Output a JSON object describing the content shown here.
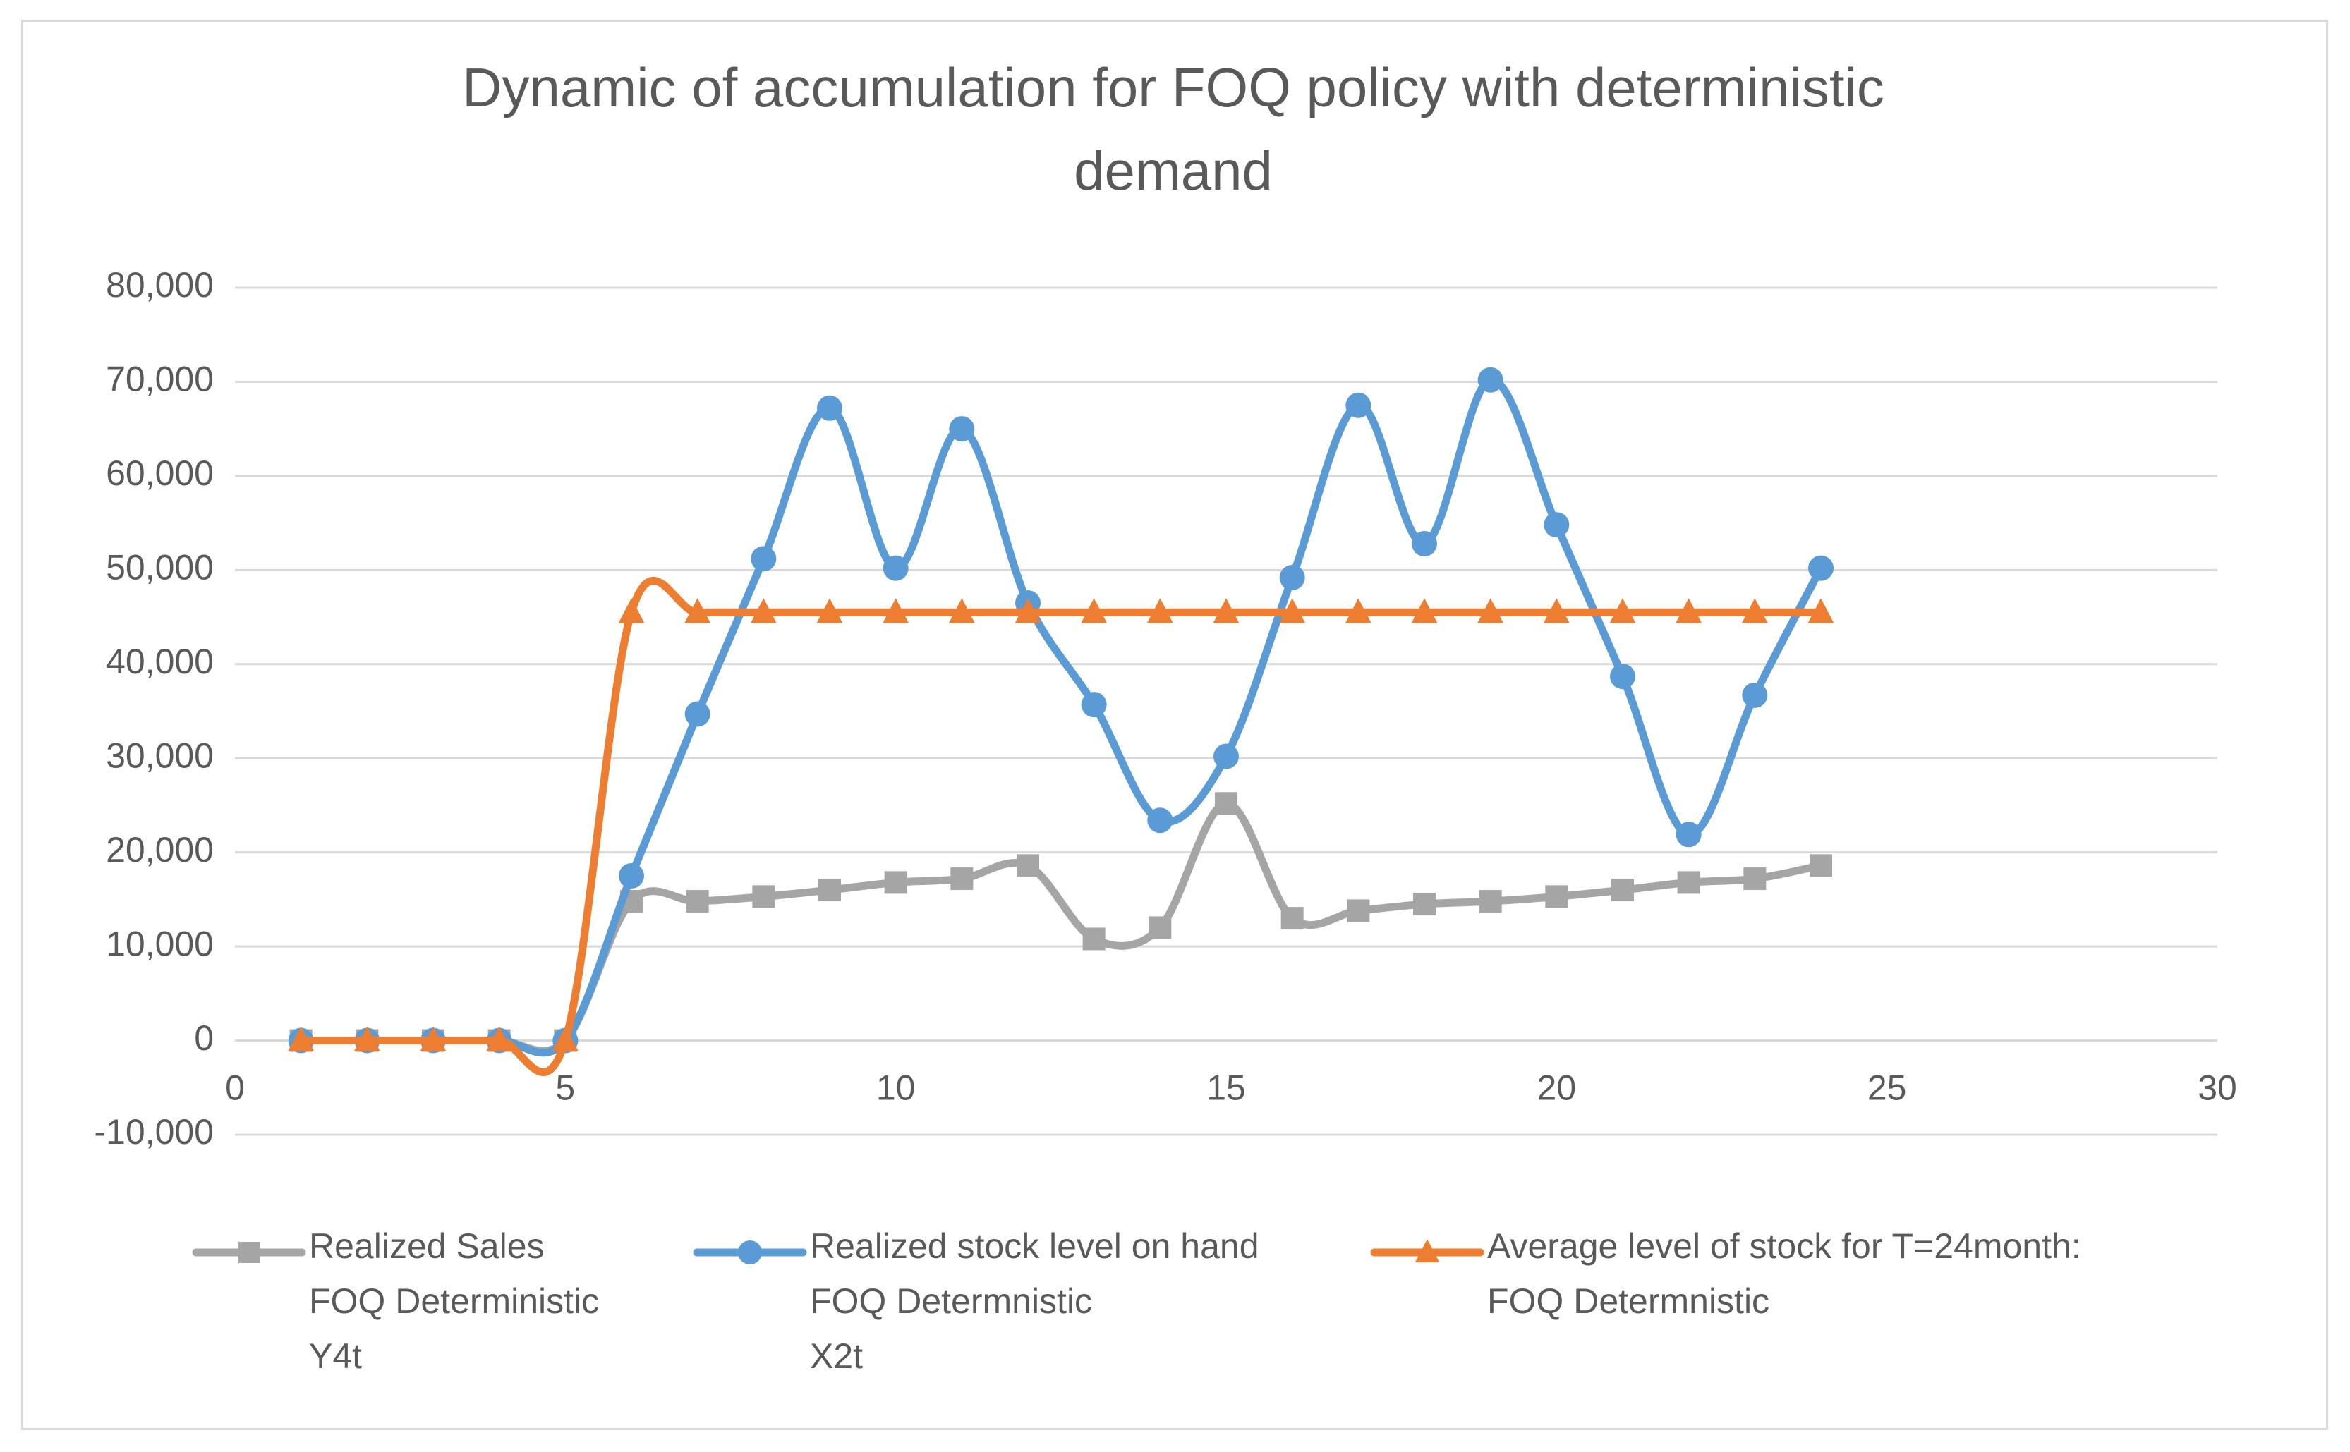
{
  "chart_data": {
    "type": "line",
    "title_lines": [
      "Dynamic of accumulation for FOQ policy with deterministic",
      "demand"
    ],
    "xlabel": "",
    "ylabel": "",
    "xlim": [
      0,
      30
    ],
    "ylim": [
      -10000,
      80000
    ],
    "x_ticks": [
      "0",
      "5",
      "10",
      "15",
      "20",
      "25",
      "30"
    ],
    "y_ticks": [
      "80,000",
      "70,000",
      "60,000",
      "50,000",
      "40,000",
      "30,000",
      "20,000",
      "10,000",
      "0",
      "-10,000"
    ],
    "grid": true,
    "legend_position": "bottom",
    "colors": {
      "sales": "#a5a5a5",
      "stock": "#5b9bd5",
      "average": "#ed7d31",
      "grid": "#d9d9d9",
      "text": "#595959"
    },
    "series": [
      {
        "name": "Realized Sales FOQ Deterministic Y4t",
        "legend_lines": [
          "Realized Sales",
          "FOQ Deterministic",
          "Y4t"
        ],
        "marker": "square",
        "color": "#a5a5a5",
        "x": [
          1,
          2,
          3,
          4,
          5,
          6,
          7,
          8,
          9,
          10,
          11,
          12,
          13,
          14,
          15,
          16,
          17,
          18,
          19,
          20,
          21,
          22,
          23,
          24
        ],
        "values": [
          0,
          0,
          0,
          0,
          0,
          14800,
          14800,
          15300,
          16000,
          16800,
          17200,
          18600,
          10800,
          12000,
          25200,
          13000,
          13800,
          14500,
          14800,
          15300,
          16000,
          16800,
          17200,
          18600
        ]
      },
      {
        "name": "Realized stock level on hand FOQ Determnistic X2t",
        "legend_lines": [
          "Realized stock level on hand",
          "FOQ Determnistic",
          "X2t"
        ],
        "marker": "circle",
        "color": "#5b9bd5",
        "x": [
          1,
          2,
          3,
          4,
          5,
          6,
          7,
          8,
          9,
          10,
          11,
          12,
          13,
          14,
          15,
          16,
          17,
          18,
          19,
          20,
          21,
          22,
          23,
          24
        ],
        "values": [
          0,
          0,
          0,
          0,
          0,
          17500,
          34700,
          51200,
          67200,
          50200,
          65000,
          46500,
          35700,
          23400,
          30200,
          49200,
          67500,
          52800,
          70200,
          54800,
          38700,
          21900,
          36700,
          50200
        ]
      },
      {
        "name": "Average level of stock for T=24month: FOQ Determnistic",
        "legend_lines": [
          "Average level of stock for T=24month:",
          "FOQ Determnistic"
        ],
        "marker": "triangle",
        "color": "#ed7d31",
        "x": [
          1,
          2,
          3,
          4,
          5,
          6,
          7,
          8,
          9,
          10,
          11,
          12,
          13,
          14,
          15,
          16,
          17,
          18,
          19,
          20,
          21,
          22,
          23,
          24
        ],
        "values": [
          0,
          0,
          0,
          0,
          0,
          45500,
          45500,
          45500,
          45500,
          45500,
          45500,
          45500,
          45500,
          45500,
          45500,
          45500,
          45500,
          45500,
          45500,
          45500,
          45500,
          45500,
          45500,
          45500
        ]
      }
    ]
  }
}
